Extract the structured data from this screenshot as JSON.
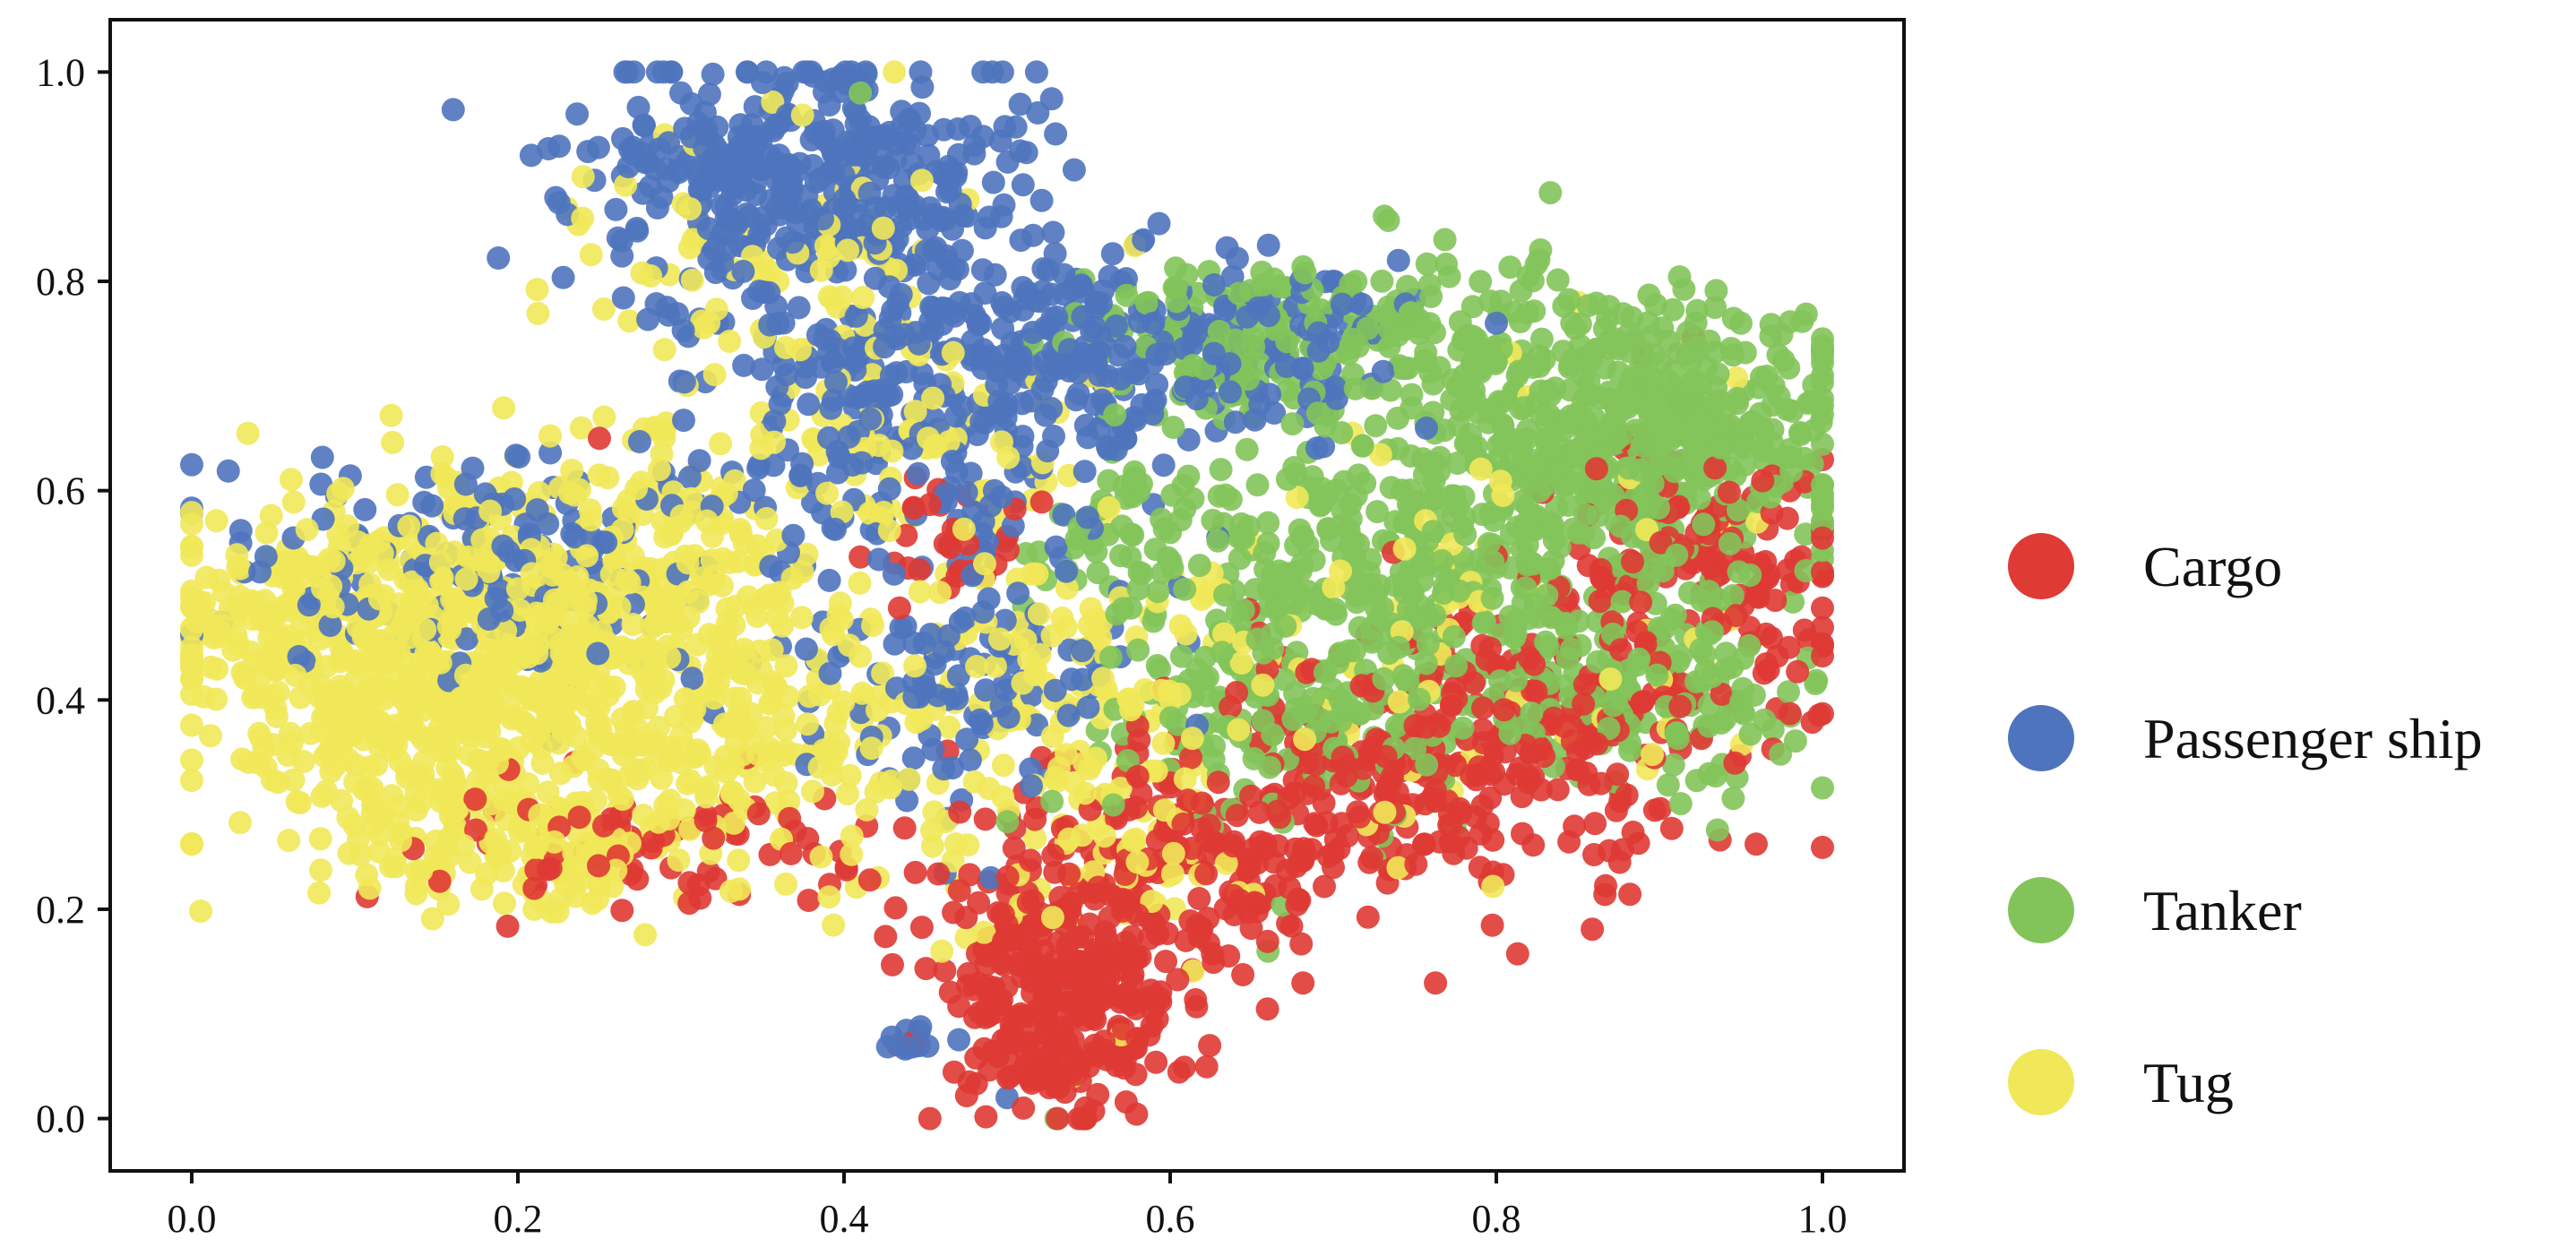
{
  "chart_data": {
    "type": "scatter",
    "title": "",
    "xlabel": "",
    "ylabel": "",
    "xlim": [
      -0.05,
      1.05
    ],
    "ylim": [
      -0.05,
      1.05
    ],
    "x_ticks": [
      0.0,
      0.2,
      0.4,
      0.6,
      0.8,
      1.0
    ],
    "y_ticks": [
      0.0,
      0.2,
      0.4,
      0.6,
      0.8,
      1.0
    ],
    "x_tick_labels": [
      "0.0",
      "0.2",
      "0.4",
      "0.6",
      "0.8",
      "1.0"
    ],
    "y_tick_labels": [
      "0.0",
      "0.2",
      "0.4",
      "0.6",
      "0.8",
      "1.0"
    ],
    "grid": false,
    "legend_position": "right",
    "series": [
      {
        "name": "Cargo",
        "color": "#df3a34",
        "clusters": [
          {
            "cx": 0.53,
            "cy": 0.12,
            "sx": 0.04,
            "sy": 0.06,
            "n": 320
          },
          {
            "cx": 0.62,
            "cy": 0.25,
            "sx": 0.06,
            "sy": 0.06,
            "n": 180
          },
          {
            "cx": 0.76,
            "cy": 0.33,
            "sx": 0.08,
            "sy": 0.06,
            "n": 220
          },
          {
            "cx": 0.86,
            "cy": 0.42,
            "sx": 0.07,
            "sy": 0.07,
            "n": 160
          },
          {
            "cx": 0.93,
            "cy": 0.56,
            "sx": 0.04,
            "sy": 0.06,
            "n": 90
          },
          {
            "cx": 0.3,
            "cy": 0.26,
            "sx": 0.08,
            "sy": 0.03,
            "n": 80
          },
          {
            "cx": 0.47,
            "cy": 0.55,
            "sx": 0.03,
            "sy": 0.03,
            "n": 30
          }
        ],
        "points": [
          [
            0.51,
            0.01
          ],
          [
            0.53,
            0.03
          ],
          [
            0.25,
            0.65
          ],
          [
            0.21,
            0.22
          ],
          [
            0.7,
            0.24
          ],
          [
            0.79,
            0.24
          ],
          [
            0.85,
            0.35
          ],
          [
            0.98,
            0.6
          ]
        ]
      },
      {
        "name": "Passenger ship",
        "color": "#4f74be",
        "clusters": [
          {
            "cx": 0.38,
            "cy": 0.9,
            "sx": 0.07,
            "sy": 0.06,
            "n": 380
          },
          {
            "cx": 0.44,
            "cy": 0.7,
            "sx": 0.08,
            "sy": 0.08,
            "n": 300
          },
          {
            "cx": 0.56,
            "cy": 0.74,
            "sx": 0.05,
            "sy": 0.05,
            "n": 140
          },
          {
            "cx": 0.18,
            "cy": 0.52,
            "sx": 0.08,
            "sy": 0.06,
            "n": 160
          },
          {
            "cx": 0.48,
            "cy": 0.42,
            "sx": 0.06,
            "sy": 0.06,
            "n": 120
          },
          {
            "cx": 0.68,
            "cy": 0.74,
            "sx": 0.04,
            "sy": 0.04,
            "n": 70
          },
          {
            "cx": 0.45,
            "cy": 0.07,
            "sx": 0.01,
            "sy": 0.01,
            "n": 12
          }
        ],
        "points": [
          [
            0.35,
            0.99
          ],
          [
            0.3,
            0.98
          ],
          [
            0.48,
            0.93
          ],
          [
            0.74,
            0.82
          ],
          [
            0.03,
            0.55
          ],
          [
            0.5,
            0.02
          ],
          [
            0.49,
            0.23
          ],
          [
            0.8,
            0.76
          ]
        ]
      },
      {
        "name": "Tanker",
        "color": "#83c45a",
        "clusters": [
          {
            "cx": 0.9,
            "cy": 0.66,
            "sx": 0.06,
            "sy": 0.06,
            "n": 420
          },
          {
            "cx": 0.78,
            "cy": 0.55,
            "sx": 0.08,
            "sy": 0.08,
            "n": 380
          },
          {
            "cx": 0.68,
            "cy": 0.42,
            "sx": 0.06,
            "sy": 0.08,
            "n": 220
          },
          {
            "cx": 0.62,
            "cy": 0.74,
            "sx": 0.04,
            "sy": 0.04,
            "n": 90
          },
          {
            "cx": 0.9,
            "cy": 0.4,
            "sx": 0.05,
            "sy": 0.05,
            "n": 120
          },
          {
            "cx": 0.75,
            "cy": 0.76,
            "sx": 0.05,
            "sy": 0.04,
            "n": 110
          },
          {
            "cx": 0.57,
            "cy": 0.57,
            "sx": 0.03,
            "sy": 0.04,
            "n": 50
          }
        ],
        "points": [
          [
            0.41,
            0.98
          ],
          [
            0.42,
            0.86
          ],
          [
            0.53,
            0.0
          ],
          [
            0.66,
            0.16
          ],
          [
            1.0,
            0.71
          ],
          [
            0.95,
            0.76
          ],
          [
            0.73,
            0.27
          ],
          [
            0.55,
            0.45
          ]
        ]
      },
      {
        "name": "Tug",
        "color": "#f1e859",
        "clusters": [
          {
            "cx": 0.14,
            "cy": 0.42,
            "sx": 0.07,
            "sy": 0.08,
            "n": 520
          },
          {
            "cx": 0.25,
            "cy": 0.5,
            "sx": 0.07,
            "sy": 0.08,
            "n": 360
          },
          {
            "cx": 0.33,
            "cy": 0.37,
            "sx": 0.06,
            "sy": 0.07,
            "n": 200
          },
          {
            "cx": 0.04,
            "cy": 0.47,
            "sx": 0.03,
            "sy": 0.04,
            "n": 80
          },
          {
            "cx": 0.2,
            "cy": 0.27,
            "sx": 0.05,
            "sy": 0.04,
            "n": 120
          },
          {
            "cx": 0.36,
            "cy": 0.8,
            "sx": 0.07,
            "sy": 0.08,
            "n": 90
          },
          {
            "cx": 0.55,
            "cy": 0.42,
            "sx": 0.06,
            "sy": 0.05,
            "n": 110
          },
          {
            "cx": 0.55,
            "cy": 0.26,
            "sx": 0.05,
            "sy": 0.07,
            "n": 70
          },
          {
            "cx": 0.78,
            "cy": 0.45,
            "sx": 0.09,
            "sy": 0.12,
            "n": 70
          },
          {
            "cx": 0.45,
            "cy": 0.62,
            "sx": 0.06,
            "sy": 0.06,
            "n": 70
          }
        ],
        "points": [
          [
            0.24,
            0.9
          ],
          [
            0.23,
            0.87
          ],
          [
            0.85,
            0.78
          ],
          [
            0.54,
            0.04
          ],
          [
            0.57,
            0.08
          ],
          [
            0.46,
            0.16
          ],
          [
            0.96,
            0.57
          ],
          [
            0.89,
            0.5
          ],
          [
            0.87,
            0.42
          ],
          [
            0.21,
            0.2
          ],
          [
            0.0,
            0.49
          ],
          [
            0.29,
            0.94
          ],
          [
            0.82,
            0.69
          ]
        ]
      }
    ]
  }
}
